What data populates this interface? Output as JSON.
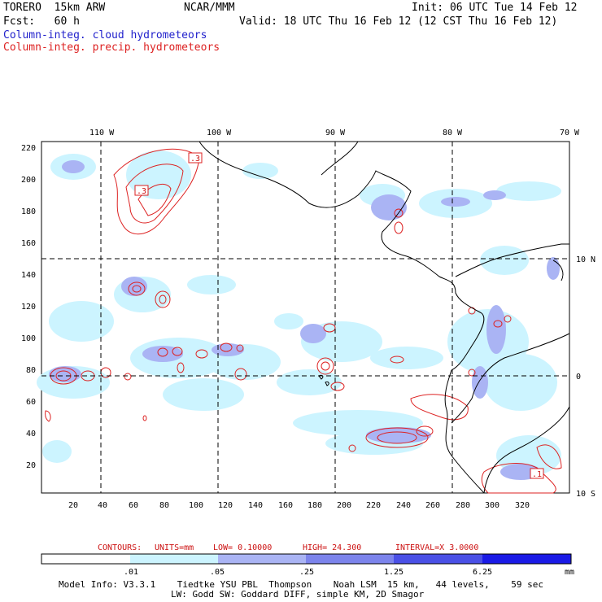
{
  "header": {
    "model": "TORERO  15km ARW",
    "center": "NCAR/MMM",
    "init": "Init: 06 UTC Tue 14 Feb 12",
    "fcst": "Fcst:   60 h",
    "valid": "Valid: 18 UTC Thu 16 Feb 12 (12 CST Thu 16 Feb 12)",
    "legend_cloud": "Column-integ. cloud hydrometeors",
    "legend_precip": "Column-integ. precip. hydrometeors"
  },
  "map": {
    "top_lon_labels": [
      "110 W",
      "100 W",
      "90 W",
      "80 W",
      "70 W"
    ],
    "left_y_ticks": [
      "220",
      "200",
      "180",
      "160",
      "140",
      "120",
      "100",
      "80",
      "60",
      "40",
      "20"
    ],
    "bottom_x_ticks": [
      "20",
      "40",
      "60",
      "80",
      "100",
      "120",
      "140",
      "160",
      "180",
      "200",
      "220",
      "240",
      "260",
      "280",
      "300",
      "320"
    ],
    "right_lat_labels": [
      "10 N",
      "0",
      "10 S"
    ],
    "contour_labels": [
      ".3",
      ".3",
      ".1"
    ]
  },
  "contours_info": {
    "prefix": "CONTOURS:",
    "units": "UNITS=mm",
    "low": "LOW= 0.10000",
    "high": "HIGH=  24.300",
    "interval": "INTERVAL=X  3.0000"
  },
  "colorbar": {
    "labels": [
      ".01",
      ".05",
      ".25",
      "1.25",
      "6.25"
    ],
    "unit": "mm",
    "colors": [
      "#ffffff",
      "#ccf4ff",
      "#aab4f4",
      "#7c84ec",
      "#4a50e6",
      "#1a1ae6"
    ]
  },
  "footer": {
    "line1": "Model Info: V3.3.1    Tiedtke YSU PBL  Thompson    Noah LSM  15 km,   44 levels,    59 sec",
    "line2": "LW: Godd SW: Goddard DIFF, simple KM, 2D Smagor"
  }
}
